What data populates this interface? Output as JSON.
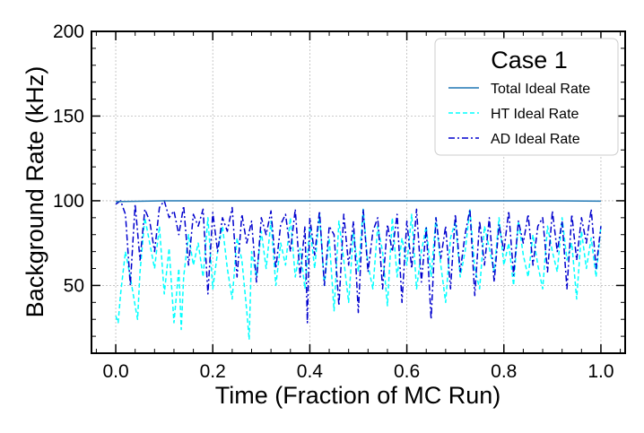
{
  "chart_data": {
    "type": "line",
    "title": "",
    "xlabel": "Time (Fraction of MC Run)",
    "ylabel": "Background Rate (kHz)",
    "xlim": [
      -0.05,
      1.05
    ],
    "ylim": [
      10,
      200
    ],
    "xticks": [
      "0.0",
      "0.2",
      "0.4",
      "0.6",
      "0.8",
      "1.0"
    ],
    "yticks": [
      "50",
      "100",
      "150",
      "200"
    ],
    "grid": true,
    "legend": {
      "position": "top-right",
      "title": "Case 1",
      "entries": [
        "Total Ideal Rate",
        "HT Ideal Rate",
        "AD Ideal Rate"
      ]
    },
    "series": [
      {
        "name": "Total Ideal Rate",
        "style": "solid",
        "color": "#1f77b4",
        "x": [
          0.0,
          0.1,
          0.2,
          0.3,
          0.4,
          0.5,
          0.6,
          0.7,
          0.8,
          0.9,
          1.0
        ],
        "y": [
          99.5,
          100,
          100,
          100,
          100,
          100,
          100,
          100,
          100,
          100,
          99.8
        ]
      },
      {
        "name": "HT Ideal Rate",
        "style": "dashed",
        "color": "#00ffff",
        "x": [
          0.0,
          0.005,
          0.01,
          0.02,
          0.03,
          0.04,
          0.045,
          0.05,
          0.06,
          0.07,
          0.08,
          0.09,
          0.1,
          0.11,
          0.12,
          0.13,
          0.135,
          0.14,
          0.15,
          0.16,
          0.17,
          0.18,
          0.19,
          0.2,
          0.21,
          0.22,
          0.23,
          0.24,
          0.25,
          0.26,
          0.27,
          0.275,
          0.28,
          0.29,
          0.3,
          0.31,
          0.32,
          0.33,
          0.34,
          0.35,
          0.36,
          0.37,
          0.38,
          0.39,
          0.4,
          0.41,
          0.42,
          0.43,
          0.44,
          0.45,
          0.46,
          0.47,
          0.48,
          0.49,
          0.5,
          0.51,
          0.52,
          0.53,
          0.54,
          0.55,
          0.56,
          0.57,
          0.58,
          0.59,
          0.6,
          0.61,
          0.62,
          0.63,
          0.64,
          0.65,
          0.66,
          0.67,
          0.68,
          0.69,
          0.7,
          0.71,
          0.72,
          0.73,
          0.74,
          0.75,
          0.76,
          0.77,
          0.78,
          0.79,
          0.8,
          0.81,
          0.82,
          0.83,
          0.84,
          0.85,
          0.86,
          0.87,
          0.88,
          0.89,
          0.9,
          0.91,
          0.92,
          0.93,
          0.94,
          0.95,
          0.96,
          0.97,
          0.98,
          0.99,
          1.0
        ],
        "y": [
          32,
          28,
          45,
          70,
          55,
          38,
          30,
          58,
          90,
          75,
          60,
          85,
          45,
          72,
          28,
          60,
          24,
          55,
          80,
          62,
          75,
          55,
          90,
          48,
          70,
          85,
          60,
          42,
          78,
          65,
          35,
          18,
          70,
          55,
          82,
          60,
          88,
          50,
          75,
          62,
          90,
          55,
          72,
          48,
          85,
          60,
          92,
          50,
          78,
          35,
          88,
          65,
          40,
          82,
          58,
          95,
          62,
          48,
          85,
          70,
          38,
          90,
          55,
          78,
          62,
          92,
          48,
          70,
          85,
          55,
          90,
          62,
          40,
          78,
          88,
          55,
          70,
          95,
          60,
          48,
          85,
          72,
          58,
          90,
          62,
          75,
          50,
          88,
          68,
          55,
          80,
          62,
          48,
          85,
          70,
          58,
          90,
          65,
          75,
          42,
          82,
          60,
          78,
          55,
          85
        ]
      },
      {
        "name": "AD Ideal Rate",
        "style": "dashdot",
        "color": "#0000cd",
        "x": [
          0.0,
          0.01,
          0.02,
          0.03,
          0.04,
          0.05,
          0.06,
          0.07,
          0.08,
          0.09,
          0.1,
          0.11,
          0.12,
          0.13,
          0.14,
          0.15,
          0.16,
          0.17,
          0.18,
          0.19,
          0.2,
          0.21,
          0.22,
          0.23,
          0.24,
          0.25,
          0.26,
          0.27,
          0.28,
          0.29,
          0.3,
          0.31,
          0.32,
          0.33,
          0.34,
          0.35,
          0.36,
          0.37,
          0.38,
          0.39,
          0.395,
          0.4,
          0.41,
          0.42,
          0.43,
          0.44,
          0.45,
          0.46,
          0.47,
          0.48,
          0.49,
          0.5,
          0.51,
          0.52,
          0.53,
          0.54,
          0.55,
          0.56,
          0.57,
          0.58,
          0.59,
          0.6,
          0.61,
          0.62,
          0.63,
          0.64,
          0.65,
          0.66,
          0.67,
          0.68,
          0.69,
          0.7,
          0.71,
          0.72,
          0.73,
          0.74,
          0.75,
          0.76,
          0.77,
          0.78,
          0.79,
          0.8,
          0.81,
          0.82,
          0.83,
          0.84,
          0.85,
          0.86,
          0.87,
          0.88,
          0.89,
          0.9,
          0.91,
          0.92,
          0.93,
          0.94,
          0.95,
          0.96,
          0.97,
          0.98,
          0.99,
          1.0
        ],
        "y": [
          98,
          100,
          92,
          50,
          98,
          65,
          95,
          88,
          70,
          96,
          100,
          90,
          94,
          80,
          97,
          62,
          92,
          85,
          95,
          45,
          93,
          70,
          90,
          82,
          96,
          55,
          92,
          75,
          88,
          52,
          90,
          80,
          94,
          60,
          86,
          92,
          70,
          95,
          55,
          85,
          28,
          90,
          68,
          94,
          50,
          85,
          80,
          38,
          92,
          62,
          88,
          34,
          95,
          58,
          82,
          90,
          48,
          86,
          70,
          92,
          40,
          88,
          60,
          95,
          52,
          84,
          30,
          90,
          66,
          85,
          48,
          92,
          58,
          80,
          95,
          44,
          88,
          62,
          90,
          52,
          86,
          70,
          94,
          56,
          88,
          75,
          92,
          62,
          85,
          90,
          58,
          94,
          70,
          88,
          48,
          92,
          65,
          90,
          75,
          95,
          60,
          85
        ]
      }
    ]
  }
}
